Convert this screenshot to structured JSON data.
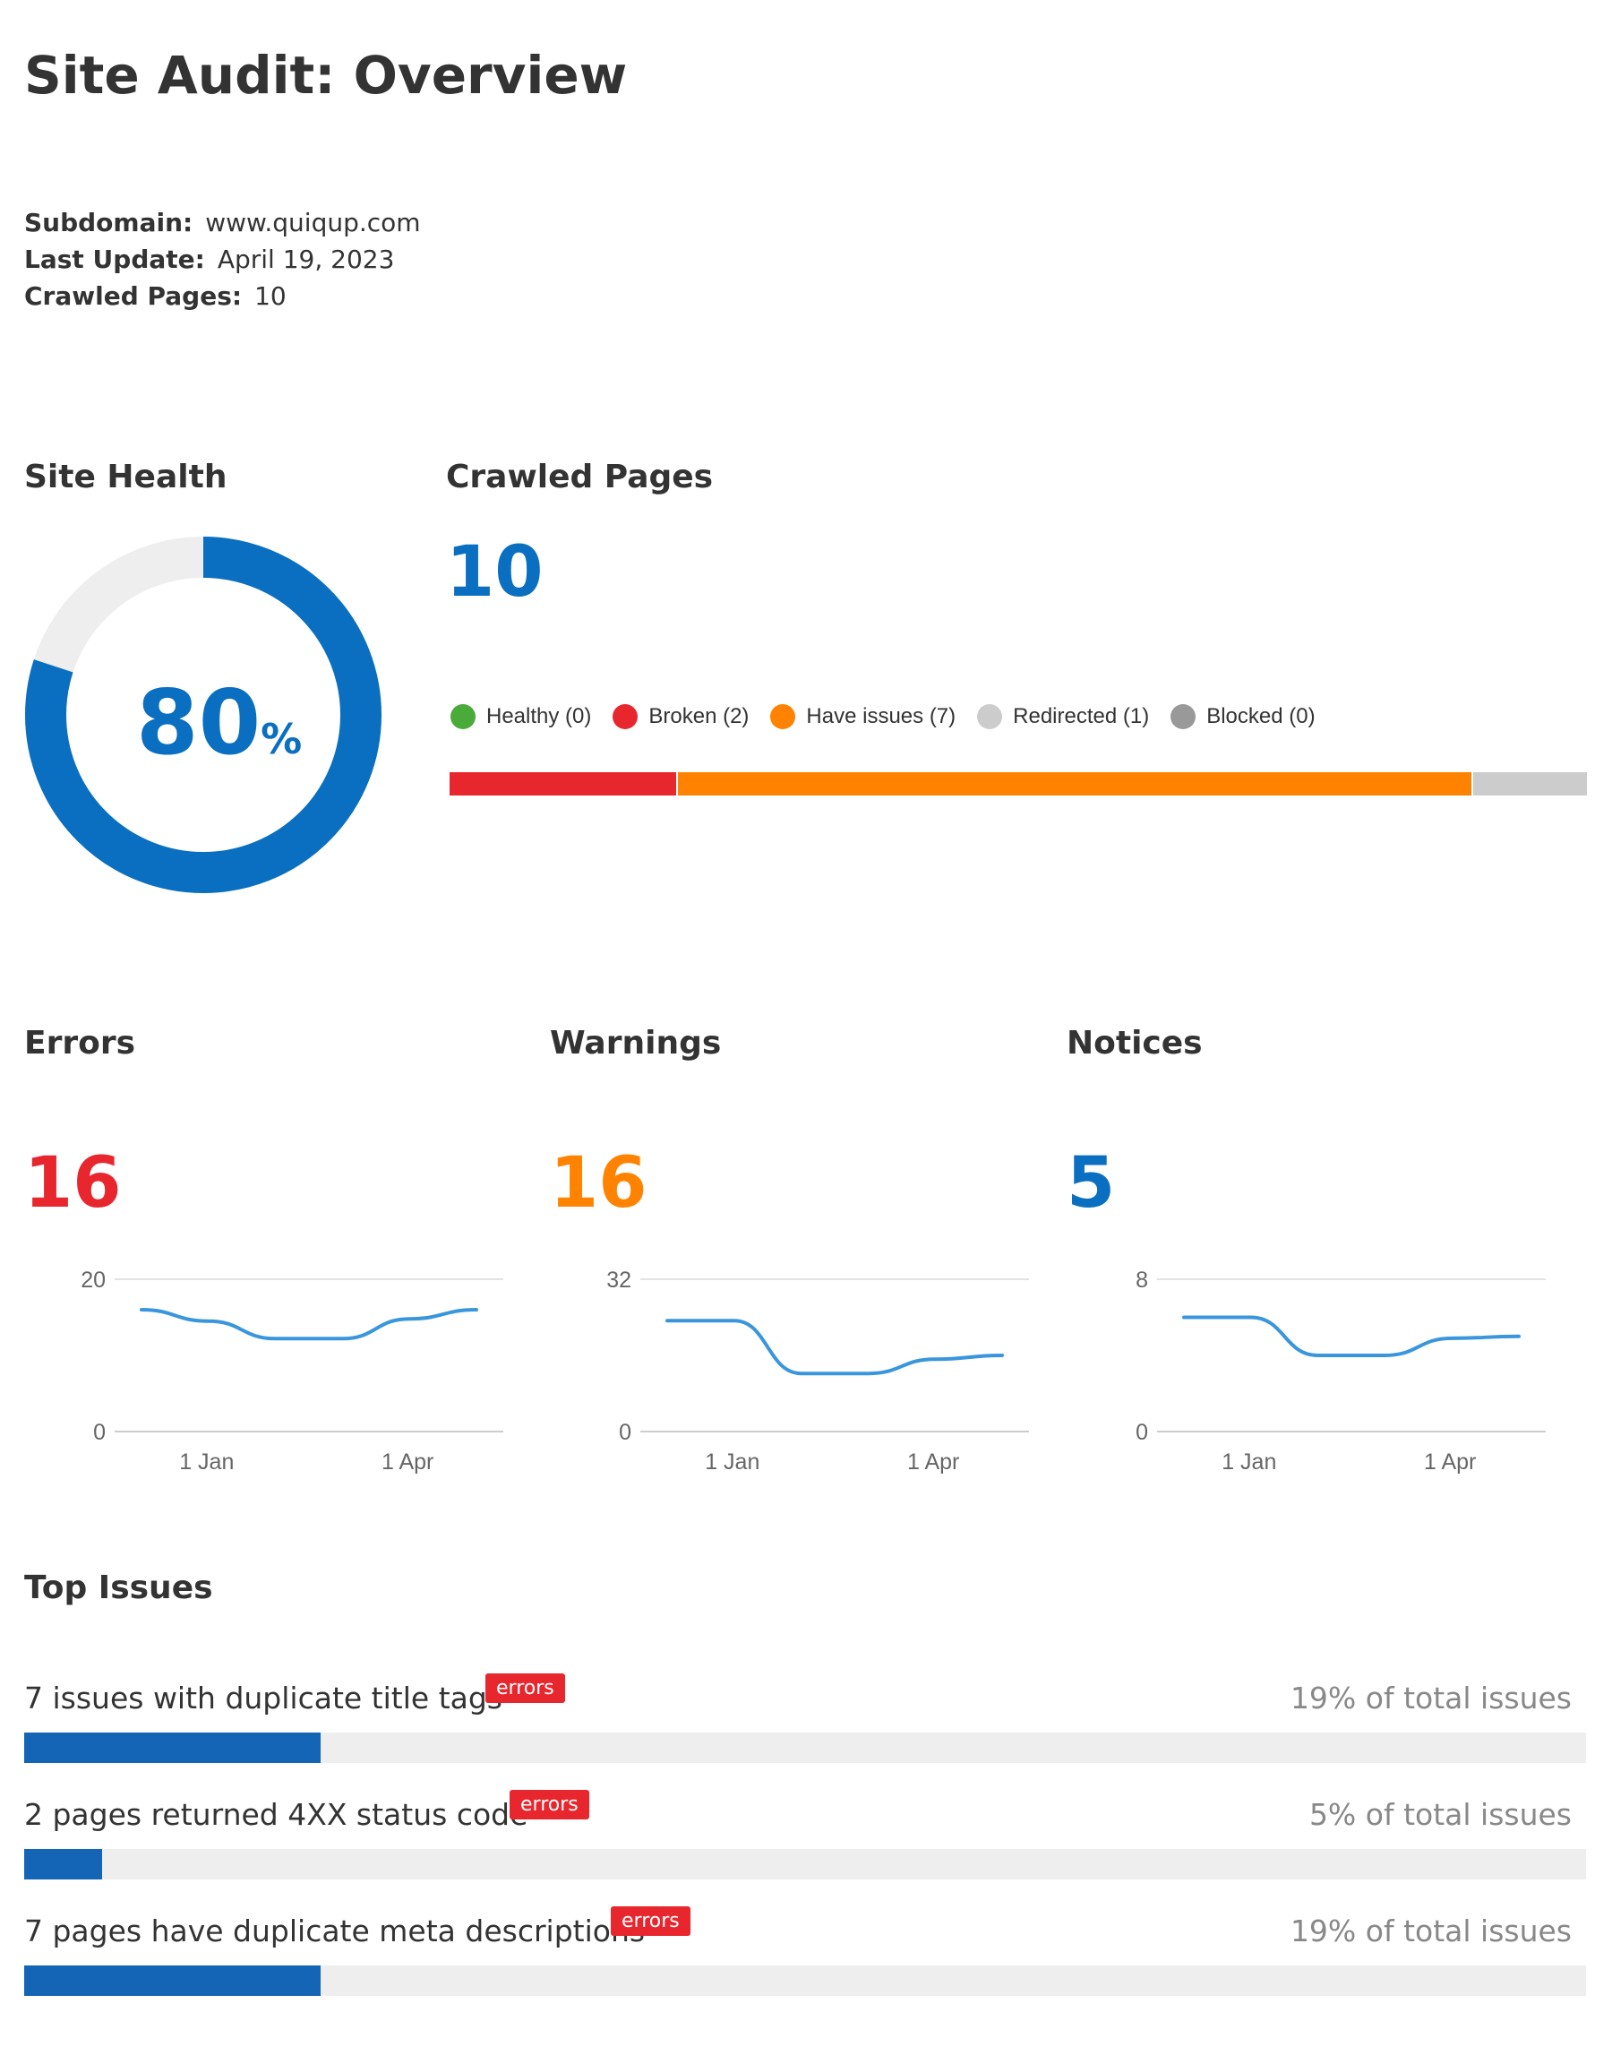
{
  "title": "Site Audit: Overview",
  "meta": {
    "subdomain_label": "Subdomain:",
    "subdomain": "www.quiqup.com",
    "last_update_label": "Last Update:",
    "last_update": "April 19, 2023",
    "crawled_pages_label": "Crawled Pages:",
    "crawled_pages": "10"
  },
  "site_health": {
    "title": "Site Health",
    "value": "80",
    "unit": "%",
    "fraction": 0.8,
    "color": "#0a6fc0",
    "track_color": "#eeeeee"
  },
  "crawled": {
    "title": "Crawled Pages",
    "count": "10",
    "count_color": "#0a6fc0",
    "legend": [
      {
        "label": "Healthy (0)",
        "color": "#4aaa3a",
        "value": 0
      },
      {
        "label": "Broken (2)",
        "color": "#e8262e",
        "value": 2
      },
      {
        "label": "Have issues (7)",
        "color": "#ff8300",
        "value": 7
      },
      {
        "label": "Redirected (1)",
        "color": "#cccccc",
        "value": 1
      },
      {
        "label": "Blocked (0)",
        "color": "#999999",
        "value": 0
      }
    ]
  },
  "cards": [
    {
      "title": "Errors",
      "count": "16",
      "count_color": "#e8262e",
      "chart_data": {
        "type": "line",
        "x": [
          "",
          "1 Jan",
          "",
          "",
          "1 Apr",
          ""
        ],
        "xticks": [
          "1 Jan",
          "1 Apr"
        ],
        "yticks": [
          "0",
          "20"
        ],
        "ylim": [
          0,
          20
        ],
        "series": [
          {
            "values": [
              16,
              14.5,
              12.2,
              12.2,
              14.8,
              16
            ]
          }
        ],
        "line_color": "#3a96dc"
      }
    },
    {
      "title": "Warnings",
      "count": "16",
      "count_color": "#ff8300",
      "chart_data": {
        "type": "line",
        "x": [
          "",
          "1 Jan",
          "",
          "",
          "1 Apr",
          ""
        ],
        "xticks": [
          "1 Jan",
          "1 Apr"
        ],
        "yticks": [
          "0",
          "32"
        ],
        "ylim": [
          0,
          32
        ],
        "series": [
          {
            "values": [
              23.3,
              23.3,
              12.2,
              12.2,
              15.2,
              16
            ]
          }
        ],
        "line_color": "#3a96dc"
      }
    },
    {
      "title": "Notices",
      "count": "5",
      "count_color": "#0a6fc0",
      "chart_data": {
        "type": "line",
        "x": [
          "",
          "1 Jan",
          "",
          "",
          "1 Apr",
          ""
        ],
        "xticks": [
          "1 Jan",
          "1 Apr"
        ],
        "yticks": [
          "0",
          "8"
        ],
        "ylim": [
          0,
          8
        ],
        "series": [
          {
            "values": [
              6.0,
              6.0,
              4.0,
              4.0,
              4.9,
              5.0
            ]
          }
        ],
        "line_color": "#3a96dc"
      }
    }
  ],
  "top_issues": {
    "title": "Top Issues",
    "items": [
      {
        "label": "7 issues with duplicate title tags",
        "badge": "errors",
        "percent_text": "19% of total issues",
        "share": 0.19
      },
      {
        "label": "2 pages returned 4XX status code",
        "badge": "errors",
        "percent_text": "5% of total issues",
        "share": 0.05
      },
      {
        "label": "7 pages have duplicate meta descriptions",
        "badge": "errors",
        "percent_text": "19% of total issues",
        "share": 0.19
      }
    ]
  }
}
